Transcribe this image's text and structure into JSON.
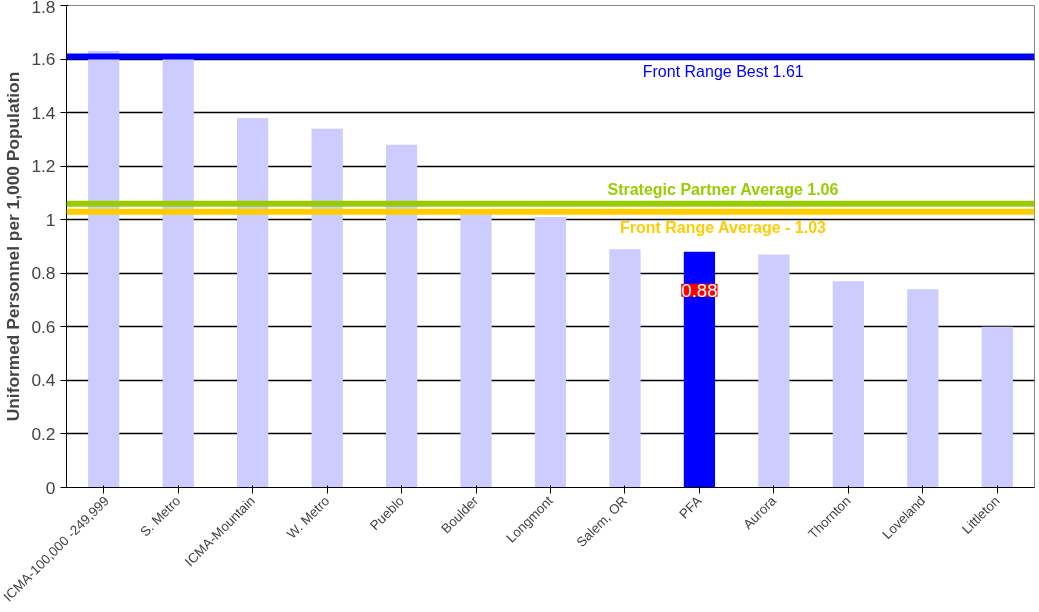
{
  "chart_data": {
    "type": "bar",
    "ylabel": "Uniformed Personnel per 1,000 Population",
    "categories": [
      "ICMA-100,000 -249,999",
      "S. Metro",
      "ICMA-Mountain",
      "W. Metro",
      "Pueblo",
      "Boulder",
      "Longmont",
      "Salem, OR",
      "PFA",
      "Aurora",
      "Thornton",
      "Loveland",
      "Littleton"
    ],
    "values": [
      1.63,
      1.6,
      1.38,
      1.34,
      1.28,
      1.02,
      1.01,
      0.89,
      0.88,
      0.87,
      0.77,
      0.74,
      0.6
    ],
    "colors": [
      "#ccccff",
      "#ccccff",
      "#ccccff",
      "#ccccff",
      "#ccccff",
      "#ccccff",
      "#ccccff",
      "#ccccff",
      "#0000ff",
      "#ccccff",
      "#ccccff",
      "#ccccff",
      "#ccccff"
    ],
    "value_labels": [
      null,
      null,
      null,
      null,
      null,
      null,
      null,
      null,
      "0.88",
      null,
      null,
      null,
      null
    ],
    "ylim": [
      0,
      1.8
    ],
    "yticks": [
      0,
      0.2,
      0.4,
      0.6,
      0.8,
      1,
      1.2,
      1.4,
      1.6,
      1.8
    ],
    "grid": "y",
    "ref_lines": [
      {
        "axis": "y",
        "value": 1.61,
        "label": "Front Range Best 1.61",
        "color": "#0000ff"
      },
      {
        "axis": "y",
        "value": 1.06,
        "label": "Strategic Partner Average 1.06",
        "color": "#99cc00"
      },
      {
        "axis": "y",
        "value": 1.03,
        "label": "Front Range Average - 1.03",
        "color": "#ffcc00"
      }
    ]
  }
}
